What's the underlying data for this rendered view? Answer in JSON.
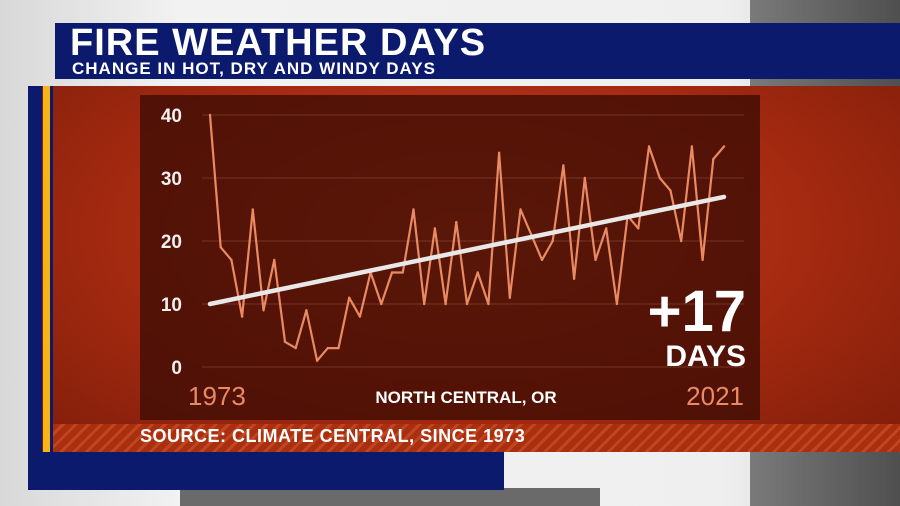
{
  "header": {
    "title": "FIRE WEATHER DAYS",
    "subtitle": "CHANGE IN HOT, DRY AND WINDY DAYS"
  },
  "footer": {
    "source": "SOURCE: CLIMATE CENTRAL, SINCE 1973"
  },
  "colors": {
    "series_line": "#e98a62",
    "trend_line": "#e8e8e8",
    "panel_red": "#a52a10",
    "navy": "#0c1a6e",
    "gold": "#f5b51a"
  },
  "chart_data": {
    "type": "line",
    "title": "FIRE WEATHER DAYS",
    "subtitle": "CHANGE IN HOT, DRY AND WINDY DAYS",
    "region_label": "NORTH CENTRAL, OR",
    "start_label": "1973",
    "end_label": "2021",
    "change_value": "+17",
    "change_unit": "DAYS",
    "x": [
      1973,
      1974,
      1975,
      1976,
      1977,
      1978,
      1979,
      1980,
      1981,
      1982,
      1983,
      1984,
      1985,
      1986,
      1987,
      1988,
      1989,
      1990,
      1991,
      1992,
      1993,
      1994,
      1995,
      1996,
      1997,
      1998,
      1999,
      2000,
      2001,
      2002,
      2003,
      2004,
      2005,
      2006,
      2007,
      2008,
      2009,
      2010,
      2011,
      2012,
      2013,
      2014,
      2015,
      2016,
      2017,
      2018,
      2019,
      2020,
      2021
    ],
    "series": [
      {
        "values": [
          40,
          19,
          17,
          8,
          25,
          9,
          17,
          4,
          3,
          9,
          1,
          3,
          3,
          11,
          8,
          15,
          10,
          15,
          15,
          25,
          10,
          22,
          10,
          23,
          10,
          15,
          10,
          34,
          11,
          25,
          21,
          17,
          20,
          32,
          14,
          30,
          17,
          22,
          10,
          24,
          22,
          35,
          30,
          28,
          20,
          35,
          17,
          33,
          35
        ]
      }
    ],
    "trend": {
      "start": 10,
      "end": 27
    },
    "xlim": [
      1973,
      2021
    ],
    "ylim": [
      0,
      40
    ],
    "yticks": [
      0,
      10,
      20,
      30,
      40
    ],
    "ytick_labels": [
      "0",
      "10",
      "20",
      "30",
      "40"
    ],
    "grid": true
  }
}
